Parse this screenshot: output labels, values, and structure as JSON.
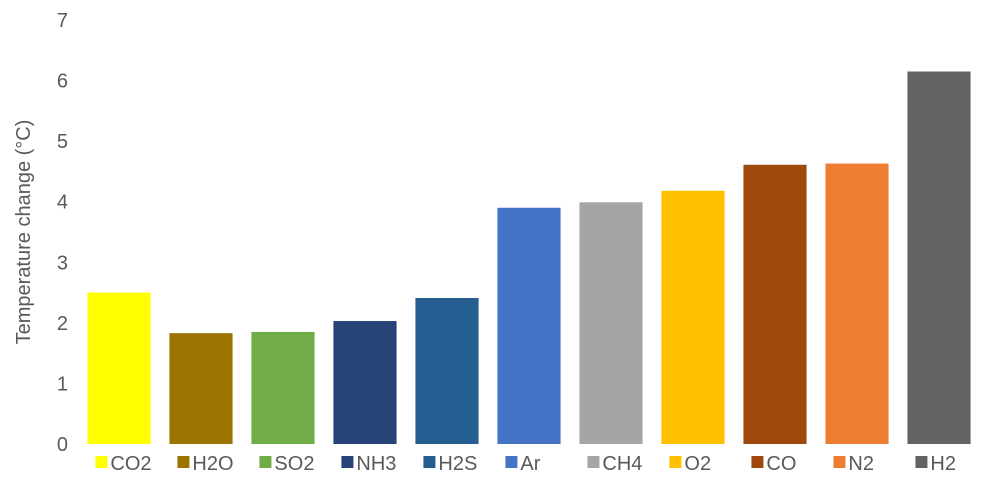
{
  "chart_data": {
    "type": "bar",
    "title": "",
    "xlabel": "",
    "ylabel": "Temperature change (°C)",
    "ylim": [
      0,
      7
    ],
    "yticks": [
      0,
      1,
      2,
      3,
      4,
      5,
      6,
      7
    ],
    "grid": false,
    "legend_position": "bottom",
    "categories": [
      "CO2",
      "H2O",
      "SO2",
      "NH3",
      "H2S",
      "Ar",
      "CH4",
      "O2",
      "CO",
      "N2",
      "H2"
    ],
    "values": [
      2.5,
      1.83,
      1.85,
      2.03,
      2.41,
      3.9,
      3.99,
      4.18,
      4.61,
      4.63,
      6.15
    ],
    "colors": [
      "#FFFF00",
      "#9C7500",
      "#70AD47",
      "#264478",
      "#255E91",
      "#4472C4",
      "#A5A5A5",
      "#FFC000",
      "#9E480E",
      "#ED7D31",
      "#636363"
    ]
  }
}
